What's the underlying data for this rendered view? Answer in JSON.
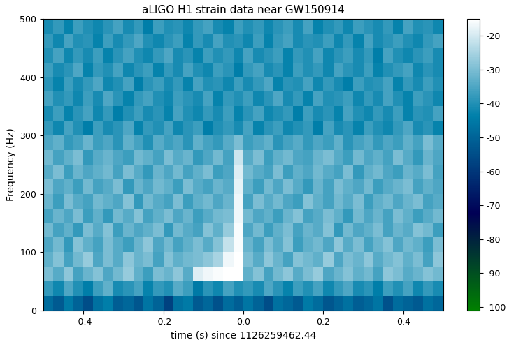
{
  "chart_data": {
    "type": "heatmap",
    "title": "aLIGO H1 strain data near GW150914",
    "x_label": "time (s) since 1126259462.44",
    "y_label": "Frequency (Hz)",
    "xlim": [
      -0.5,
      0.5
    ],
    "ylim": [
      0,
      500
    ],
    "xticks": [
      -0.4,
      -0.2,
      0.0,
      0.2,
      0.4
    ],
    "yticks": [
      0,
      100,
      200,
      300,
      400,
      500
    ],
    "color": "ocean",
    "colorbar": {
      "range": [
        -101,
        -15
      ],
      "ticks": [
        -20,
        -30,
        -40,
        -50,
        -60,
        -70,
        -80,
        -90,
        -100
      ]
    },
    "cells": [
      [
        -48,
        -52,
        -45,
        -50,
        -55,
        -47,
        -44,
        -51,
        -49,
        -53,
        -46,
        -50,
        -58,
        -47,
        -45,
        -52,
        -49,
        -54,
        -48,
        -51,
        -46,
        -50,
        -55,
        -47,
        -49,
        -52,
        -45,
        -48,
        -53,
        -50,
        -47,
        -51,
        -49,
        -46,
        -54,
        -48,
        -50,
        -52,
        -47,
        -49
      ],
      [
        -38,
        -42,
        -35,
        -40,
        -44,
        -37,
        -33,
        -41,
        -39,
        -36,
        -43,
        -38,
        -40,
        -34,
        -37,
        -45,
        -39,
        -42,
        -36,
        -40,
        -38,
        -41,
        -35,
        -39,
        -43,
        -37,
        -40,
        -36,
        -42,
        -38,
        -35,
        -41,
        -39,
        -44,
        -37,
        -40,
        -36,
        -42,
        -38,
        -41
      ],
      [
        -30,
        -34,
        -28,
        -36,
        -32,
        -29,
        -35,
        -31,
        -27,
        -33,
        -37,
        -30,
        -32,
        -28,
        -34,
        -19,
        -17,
        -16,
        -15,
        -15,
        -33,
        -29,
        -36,
        -31,
        -28,
        -34,
        -30,
        -27,
        -35,
        -32,
        -29,
        -33,
        -31,
        -36,
        -28,
        -30,
        -34,
        -32,
        -29,
        -31
      ],
      [
        -33,
        -29,
        -36,
        -31,
        -27,
        -35,
        -30,
        -34,
        -28,
        -32,
        -30,
        -36,
        -29,
        -33,
        -31,
        -30,
        -28,
        -25,
        -17,
        -15,
        -30,
        -34,
        -28,
        -32,
        -36,
        -29,
        -31,
        -33,
        -27,
        -35,
        -30,
        -32,
        -28,
        -34,
        -31,
        -29,
        -33,
        -30,
        -36,
        -28
      ],
      [
        -35,
        -31,
        -38,
        -29,
        -33,
        -36,
        -30,
        -34,
        -37,
        -32,
        -28,
        -35,
        -31,
        -36,
        -33,
        -30,
        -34,
        -29,
        -22,
        -16,
        -32,
        -36,
        -30,
        -34,
        -29,
        -37,
        -33,
        -31,
        -35,
        -28,
        -34,
        -30,
        -36,
        -32,
        -29,
        -35,
        -31,
        -33,
        -37,
        -30
      ],
      [
        -31,
        -36,
        -33,
        -38,
        -30,
        -34,
        -29,
        -37,
        -32,
        -35,
        -33,
        -30,
        -38,
        -31,
        -34,
        -36,
        -29,
        -33,
        -27,
        -16,
        -35,
        -31,
        -37,
        -33,
        -30,
        -36,
        -32,
        -34,
        -29,
        -38,
        -31,
        -35,
        -33,
        -30,
        -36,
        -32,
        -34,
        -29,
        -31,
        -37
      ],
      [
        -36,
        -32,
        -35,
        -30,
        -37,
        -33,
        -38,
        -31,
        -34,
        -29,
        -36,
        -33,
        -30,
        -35,
        -32,
        -37,
        -34,
        -31,
        -30,
        -17,
        -31,
        -35,
        -33,
        -37,
        -32,
        -29,
        -36,
        -34,
        -30,
        -33,
        -38,
        -31,
        -35,
        -32,
        -36,
        -30,
        -33,
        -37,
        -34,
        -31
      ],
      [
        -32,
        -37,
        -30,
        -34,
        -36,
        -31,
        -33,
        -35,
        -29,
        -38,
        -31,
        -34,
        -36,
        -30,
        -37,
        -33,
        -31,
        -35,
        -32,
        -17,
        -36,
        -30,
        -34,
        -31,
        -35,
        -37,
        -29,
        -33,
        -36,
        -31,
        -34,
        -30,
        -37,
        -33,
        -31,
        -35,
        -32,
        -30,
        -36,
        -34
      ],
      [
        -30,
        -35,
        -33,
        -37,
        -31,
        -36,
        -34,
        -30,
        -38,
        -32,
        -35,
        -31,
        -33,
        -37,
        -30,
        -34,
        -36,
        -32,
        -34,
        -18,
        -33,
        -37,
        -31,
        -35,
        -30,
        -34,
        -38,
        -32,
        -36,
        -30,
        -33,
        -35,
        -31,
        -37,
        -34,
        -32,
        -30,
        -36,
        -33,
        -35
      ],
      [
        -34,
        -30,
        -37,
        -32,
        -35,
        -33,
        -31,
        -36,
        -30,
        -34,
        -38,
        -32,
        -35,
        -31,
        -36,
        -33,
        -30,
        -37,
        -35,
        -19,
        -31,
        -34,
        -36,
        -30,
        -37,
        -33,
        -35,
        -31,
        -34,
        -36,
        -30,
        -38,
        -33,
        -31,
        -35,
        -37,
        -32,
        -34,
        -30,
        -36
      ],
      [
        -31,
        -36,
        -33,
        -30,
        -38,
        -34,
        -32,
        -35,
        -37,
        -31,
        -33,
        -36,
        -30,
        -34,
        -32,
        -38,
        -35,
        -31,
        -36,
        -21,
        -34,
        -30,
        -37,
        -33,
        -31,
        -35,
        -36,
        -32,
        -30,
        -34,
        -37,
        -31,
        -35,
        -33,
        -36,
        -30,
        -34,
        -38,
        -32,
        -35
      ],
      [
        -35,
        -33,
        -38,
        -36,
        -32,
        -37,
        -35,
        -39,
        -33,
        -36,
        -40,
        -34,
        -37,
        -35,
        -39,
        -33,
        -36,
        -38,
        -34,
        -30,
        -37,
        -35,
        -33,
        -39,
        -36,
        -34,
        -38,
        -35,
        -37,
        -33,
        -39,
        -36,
        -34,
        -38,
        -35,
        -37,
        -33,
        -36,
        -30,
        -34
      ],
      [
        -38,
        -42,
        -36,
        -40,
        -44,
        -37,
        -41,
        -39,
        -35,
        -43,
        -38,
        -40,
        -36,
        -42,
        -39,
        -37,
        -44,
        -40,
        -38,
        -41,
        -36,
        -43,
        -39,
        -37,
        -42,
        -40,
        -38,
        -44,
        -36,
        -41,
        -39,
        -43,
        -37,
        -40,
        -42,
        -38,
        -35,
        -41,
        -39,
        -43
      ],
      [
        -41,
        -37,
        -43,
        -39,
        -36,
        -42,
        -38,
        -44,
        -40,
        -37,
        -41,
        -39,
        -43,
        -36,
        -40,
        -42,
        -38,
        -41,
        -37,
        -43,
        -39,
        -36,
        -42,
        -40,
        -38,
        -44,
        -37,
        -41,
        -39,
        -43,
        -36,
        -40,
        -42,
        -38,
        -41,
        -37,
        -43,
        -39,
        -40,
        -36
      ],
      [
        -36,
        -40,
        -38,
        -42,
        -37,
        -41,
        -35,
        -39,
        -43,
        -38,
        -36,
        -40,
        -42,
        -37,
        -39,
        -41,
        -36,
        -43,
        -38,
        -40,
        -37,
        -42,
        -39,
        -35,
        -41,
        -38,
        -43,
        -36,
        -40,
        -39,
        -37,
        -42,
        -38,
        -41,
        -36,
        -40,
        -43,
        -37,
        -39,
        -42
      ],
      [
        -39,
        -43,
        -37,
        -41,
        -38,
        -35,
        -42,
        -40,
        -36,
        -44,
        -39,
        -37,
        -41,
        -38,
        -43,
        -36,
        -40,
        -39,
        -42,
        -37,
        -41,
        -38,
        -35,
        -43,
        -39,
        -40,
        -36,
        -42,
        -38,
        -41,
        -44,
        -37,
        -40,
        -39,
        -36,
        -43,
        -38,
        -41,
        -37,
        -40
      ],
      [
        -37,
        -41,
        -39,
        -35,
        -43,
        -38,
        -40,
        -36,
        -42,
        -39,
        -37,
        -43,
        -38,
        -41,
        -36,
        -40,
        -42,
        -37,
        -39,
        -44,
        -38,
        -36,
        -41,
        -39,
        -43,
        -37,
        -40,
        -38,
        -42,
        -36,
        -39,
        -41,
        -37,
        -43,
        -40,
        -38,
        -36,
        -42,
        -39,
        -41
      ],
      [
        -40,
        -36,
        -42,
        -38,
        -41,
        -37,
        -43,
        -39,
        -36,
        -40,
        -42,
        -38,
        -35,
        -41,
        -39,
        -43,
        -37,
        -40,
        -38,
        -42,
        -36,
        -41,
        -39,
        -37,
        -43,
        -38,
        -40,
        -36,
        -42,
        -39,
        -37,
        -41,
        -38,
        -44,
        -36,
        -40,
        -42,
        -39,
        -37,
        -41
      ],
      [
        -38,
        -42,
        -36,
        -40,
        -39,
        -43,
        -37,
        -41,
        -38,
        -35,
        -40,
        -42,
        -39,
        -37,
        -43,
        -38,
        -41,
        -36,
        -40,
        -39,
        -42,
        -37,
        -43,
        -38,
        -36,
        -41,
        -39,
        -40,
        -37,
        -42,
        -38,
        -43,
        -36,
        -41,
        -39,
        -37,
        -40,
        -42,
        -38,
        -36
      ],
      [
        -41,
        -38,
        -43,
        -37,
        -40,
        -42,
        -39,
        -36,
        -41,
        -38,
        -44,
        -37,
        -40,
        -39,
        -42,
        -38,
        -36,
        -41,
        -43,
        -37,
        -40,
        -38,
        -42,
        -39,
        -37,
        -41,
        -36,
        -43,
        -40,
        -38,
        -42,
        -37,
        -39,
        -41,
        -38,
        -43,
        -36,
        -40,
        -39,
        -42
      ]
    ]
  }
}
